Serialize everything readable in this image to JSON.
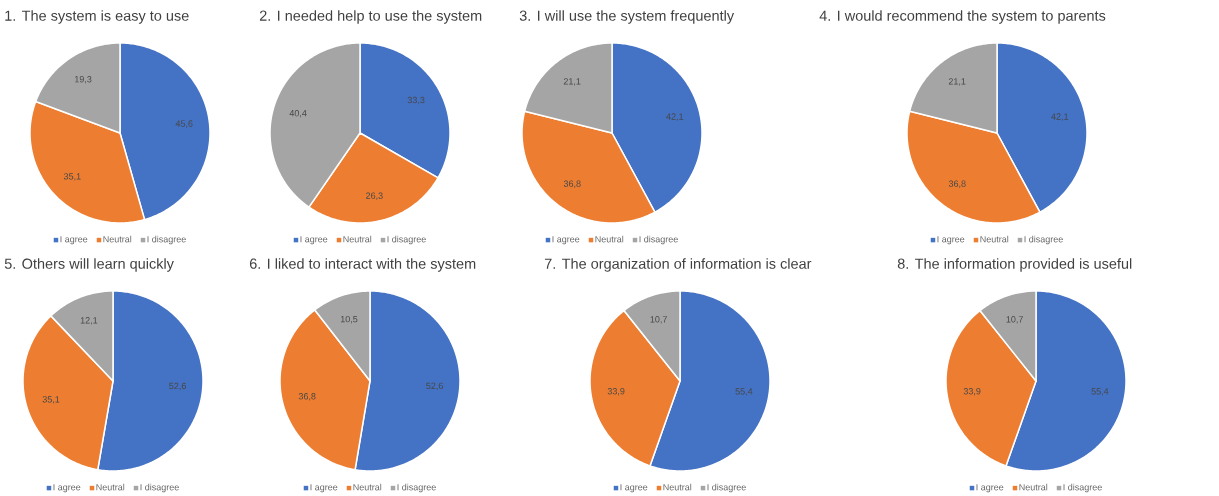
{
  "chart_data": [
    {
      "type": "pie",
      "title": "1. The system is easy to use",
      "categories": [
        "I agree",
        "Neutral",
        "I disagree"
      ],
      "values": [
        45.6,
        35.1,
        19.3
      ],
      "value_labels": [
        "45,6",
        "35,1",
        "19,3"
      ],
      "colors": [
        "#4472c4",
        "#ed7d31",
        "#a5a5a5"
      ],
      "legend": "bottom"
    },
    {
      "type": "pie",
      "title": "2. I needed help to use the system",
      "categories": [
        "I agree",
        "Neutral",
        "I disagree"
      ],
      "values": [
        33.3,
        26.3,
        40.4
      ],
      "value_labels": [
        "33,3",
        "26,3",
        "40,4"
      ],
      "colors": [
        "#4472c4",
        "#ed7d31",
        "#a5a5a5"
      ],
      "legend": "bottom"
    },
    {
      "type": "pie",
      "title": "3. I will use the system frequently",
      "categories": [
        "I agree",
        "Neutral",
        "I disagree"
      ],
      "values": [
        42.1,
        36.8,
        21.1
      ],
      "value_labels": [
        "42,1",
        "36,8",
        "21,1"
      ],
      "colors": [
        "#4472c4",
        "#ed7d31",
        "#a5a5a5"
      ],
      "legend": "bottom"
    },
    {
      "type": "pie",
      "title": "4. I would recommend the system to parents",
      "categories": [
        "I agree",
        "Neutral",
        "I disagree"
      ],
      "values": [
        42.1,
        36.8,
        21.1
      ],
      "value_labels": [
        "42,1",
        "36,8",
        "21,1"
      ],
      "colors": [
        "#4472c4",
        "#ed7d31",
        "#a5a5a5"
      ],
      "legend": "bottom"
    },
    {
      "type": "pie",
      "title": "5. Others will learn quickly",
      "categories": [
        "I agree",
        "Neutral",
        "I disagree"
      ],
      "values": [
        52.6,
        35.1,
        12.1
      ],
      "value_labels": [
        "52,6",
        "35,1",
        "12,1"
      ],
      "colors": [
        "#4472c4",
        "#ed7d31",
        "#a5a5a5"
      ],
      "legend": "bottom"
    },
    {
      "type": "pie",
      "title": "6. I liked to interact with the system",
      "categories": [
        "I agree",
        "Neutral",
        "I disagree"
      ],
      "values": [
        52.6,
        36.8,
        10.5
      ],
      "value_labels": [
        "52,6",
        "36,8",
        "10,5"
      ],
      "colors": [
        "#4472c4",
        "#ed7d31",
        "#a5a5a5"
      ],
      "legend": "bottom"
    },
    {
      "type": "pie",
      "title": "7. The organization of information is clear",
      "categories": [
        "I agree",
        "Neutral",
        "I disagree"
      ],
      "values": [
        55.4,
        33.9,
        10.7
      ],
      "value_labels": [
        "55,4",
        "33,9",
        "10,7"
      ],
      "colors": [
        "#4472c4",
        "#ed7d31",
        "#a5a5a5"
      ],
      "legend": "bottom"
    },
    {
      "type": "pie",
      "title": "8. The information provided is useful",
      "categories": [
        "I agree",
        "Neutral",
        "I disagree"
      ],
      "values": [
        55.4,
        33.9,
        10.7
      ],
      "value_labels": [
        "55,4",
        "33,9",
        "10,7"
      ],
      "colors": [
        "#4472c4",
        "#ed7d31",
        "#a5a5a5"
      ],
      "legend": "bottom"
    }
  ]
}
